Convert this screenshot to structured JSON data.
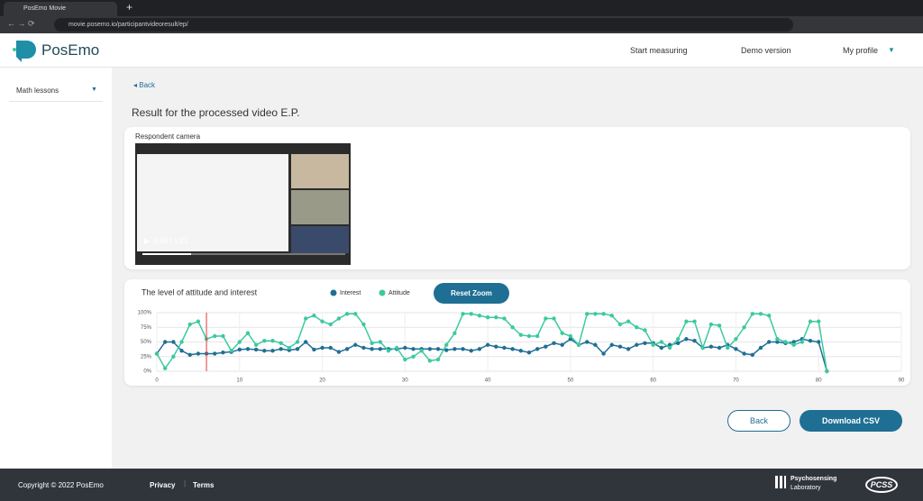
{
  "browser": {
    "tab_title": "PosEmo Movie",
    "url": "movie.posemo.io/participantvideoresult/ep/"
  },
  "header": {
    "logo": "PosEmo",
    "nav": [
      "Start measuring",
      "Demo version",
      "My profile"
    ]
  },
  "sidebar": {
    "item": "Math lessons"
  },
  "content": {
    "back": "Back",
    "title": "Result for the processed video E.P.",
    "camera_label": "Respondent camera",
    "video_time": "0:06 / 1:21"
  },
  "chart_data": {
    "type": "line",
    "title": "The level of attitude and interest",
    "button": "Reset Zoom",
    "x": [
      0,
      1,
      2,
      3,
      4,
      5,
      6,
      7,
      8,
      9,
      10,
      11,
      12,
      13,
      14,
      15,
      16,
      17,
      18,
      19,
      20,
      21,
      22,
      23,
      24,
      25,
      26,
      27,
      28,
      29,
      30,
      31,
      32,
      33,
      34,
      35,
      36,
      37,
      38,
      39,
      40,
      41,
      42,
      43,
      44,
      45,
      46,
      47,
      48,
      49,
      50,
      51,
      52,
      53,
      54,
      55,
      56,
      57,
      58,
      59,
      60,
      61,
      62,
      63,
      64,
      65,
      66,
      67,
      68,
      69,
      70,
      71,
      72,
      73,
      74,
      75,
      76,
      77,
      78,
      79,
      80,
      81
    ],
    "series": [
      {
        "name": "Interest",
        "color": "#1f6f94",
        "values": [
          30,
          50,
          50,
          35,
          28,
          30,
          30,
          30,
          32,
          33,
          37,
          38,
          37,
          35,
          35,
          38,
          36,
          38,
          50,
          37,
          40,
          40,
          33,
          38,
          45,
          40,
          38,
          38,
          38,
          38,
          40,
          38,
          38,
          38,
          38,
          36,
          38,
          38,
          35,
          38,
          45,
          42,
          40,
          38,
          35,
          32,
          38,
          42,
          48,
          45,
          55,
          45,
          50,
          45,
          30,
          45,
          42,
          38,
          45,
          48,
          48,
          40,
          45,
          48,
          55,
          52,
          40,
          42,
          40,
          45,
          38,
          30,
          28,
          40,
          50,
          50,
          48,
          50,
          55,
          52,
          50,
          0
        ]
      },
      {
        "name": "Attitude",
        "color": "#3cc9a0",
        "values": [
          30,
          5,
          25,
          50,
          80,
          85,
          55,
          60,
          60,
          35,
          50,
          65,
          45,
          52,
          52,
          48,
          40,
          50,
          90,
          95,
          85,
          80,
          90,
          98,
          98,
          80,
          48,
          50,
          35,
          40,
          20,
          25,
          35,
          18,
          20,
          45,
          65,
          98,
          98,
          95,
          92,
          92,
          90,
          75,
          62,
          60,
          60,
          90,
          90,
          65,
          60,
          45,
          98,
          98,
          98,
          95,
          80,
          85,
          75,
          70,
          45,
          50,
          40,
          55,
          85,
          85,
          40,
          80,
          78,
          40,
          55,
          75,
          98,
          98,
          95,
          55,
          50,
          45,
          50,
          85,
          85,
          0
        ]
      }
    ],
    "time_marker": 6,
    "xlim": [
      0,
      90
    ],
    "xticks": [
      0,
      10,
      20,
      30,
      40,
      50,
      60,
      70,
      80,
      90
    ],
    "ylim": [
      0,
      100
    ],
    "yticks": [
      {
        "value": 0,
        "label": "0%"
      },
      {
        "value": 25,
        "label": "25%"
      },
      {
        "value": 50,
        "label": "50%"
      },
      {
        "value": 75,
        "label": "75%"
      },
      {
        "value": 100,
        "label": "100%"
      }
    ],
    "grid": true
  },
  "buttons": {
    "back": "Back",
    "download": "Download CSV"
  },
  "footer": {
    "copyright": "Copyright © 2022 PosEmo",
    "links": [
      "Privacy",
      "Terms"
    ],
    "lab": [
      "Psychosensing",
      "Laboratory"
    ],
    "pcss": "PCSS"
  }
}
